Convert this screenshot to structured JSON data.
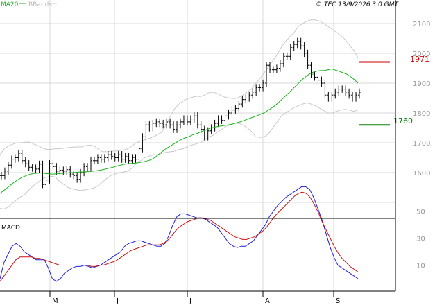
{
  "header": {
    "legend_ma": "MA20",
    "legend_bbands": "BBands",
    "copyright": "© TEC 13/9/2026 3:0 GMT"
  },
  "colors": {
    "ma": "#19b319",
    "bbands": "#c8c8c8",
    "bars": "#000000",
    "resistance": "#cc0000",
    "support": "#108010",
    "macd_line": "#1e1ee0",
    "signal_line": "#cc1010",
    "grid": "#d8d8d8",
    "axis": "#000000",
    "label": "#999999"
  },
  "chart_data": [
    {
      "type": "ohlc",
      "title": "",
      "x_ticks": [
        "M",
        "J",
        "J",
        "A",
        "S"
      ],
      "y_ticks": [
        1600,
        1700,
        1800,
        1900,
        2000,
        2100
      ],
      "ylim": [
        1470,
        2150
      ],
      "grid": true,
      "legend": [
        "MA20",
        "BBands"
      ],
      "price_close": [
        1590,
        1605,
        1625,
        1645,
        1650,
        1665,
        1640,
        1630,
        1618,
        1615,
        1612,
        1628,
        1560,
        1575,
        1630,
        1620,
        1605,
        1608,
        1605,
        1610,
        1595,
        1590,
        1578,
        1600,
        1620,
        1615,
        1640,
        1640,
        1650,
        1645,
        1650,
        1660,
        1655,
        1650,
        1660,
        1645,
        1655,
        1640,
        1650,
        1645,
        1680,
        1720,
        1760,
        1750,
        1765,
        1770,
        1765,
        1760,
        1770,
        1760,
        1745,
        1760,
        1770,
        1780,
        1770,
        1780,
        1790,
        1760,
        1745,
        1720,
        1740,
        1750,
        1765,
        1780,
        1775,
        1790,
        1800,
        1810,
        1815,
        1830,
        1845,
        1850,
        1860,
        1870,
        1885,
        1885,
        1900,
        1960,
        1945,
        1945,
        1950,
        1965,
        1990,
        1990,
        2020,
        2030,
        2040,
        2025,
        2000,
        1960,
        1930,
        1920,
        1910,
        1900,
        1860,
        1850,
        1860,
        1870,
        1880,
        1880,
        1870,
        1860,
        1850,
        1860,
        1870
      ],
      "ma20": [
        1530,
        1540,
        1550,
        1560,
        1570,
        1578,
        1585,
        1590,
        1595,
        1597,
        1598,
        1599,
        1597,
        1596,
        1595,
        1596,
        1597,
        1598,
        1599,
        1600,
        1601,
        1602,
        1602,
        1603,
        1604,
        1605,
        1607,
        1609,
        1612,
        1615,
        1618,
        1622,
        1625,
        1628,
        1630,
        1631,
        1632,
        1634,
        1636,
        1639,
        1643,
        1650,
        1660,
        1670,
        1680,
        1688,
        1695,
        1703,
        1710,
        1716,
        1720,
        1726,
        1730,
        1735,
        1740,
        1745,
        1750,
        1752,
        1755,
        1757,
        1759,
        1761,
        1764,
        1768,
        1771,
        1776,
        1781,
        1785,
        1790,
        1795,
        1800,
        1808,
        1816,
        1825,
        1836,
        1848,
        1860,
        1872,
        1885,
        1897,
        1910,
        1920,
        1930,
        1936,
        1940,
        1942,
        1942,
        1945,
        1948,
        1944,
        1940,
        1935,
        1930,
        1922,
        1912,
        1900
      ],
      "bb_upper": [
        1660,
        1680,
        1690,
        1695,
        1700,
        1700,
        1702,
        1702,
        1695,
        1690,
        1682,
        1678,
        1678,
        1680,
        1680,
        1682,
        1684,
        1685,
        1686,
        1686,
        1690,
        1692,
        1690,
        1680,
        1670,
        1670,
        1672,
        1672,
        1674,
        1676,
        1680,
        1690,
        1700,
        1705,
        1710,
        1715,
        1720,
        1728,
        1736,
        1760,
        1790,
        1815,
        1830,
        1840,
        1848,
        1852,
        1856,
        1855,
        1860,
        1868,
        1870,
        1865,
        1858,
        1852,
        1850,
        1848,
        1852,
        1860,
        1870,
        1880,
        1900,
        1915,
        1935,
        1955,
        1975,
        1995,
        2020,
        2040,
        2055,
        2070,
        2090,
        2100,
        2108,
        2112,
        2112,
        2108,
        2100,
        2090,
        2080,
        2070,
        2060,
        2046,
        2028,
        2010,
        1985
      ],
      "bb_lower": [
        1480,
        1478,
        1485,
        1498,
        1510,
        1520,
        1530,
        1545,
        1558,
        1568,
        1580,
        1585,
        1588,
        1585,
        1570,
        1560,
        1550,
        1545,
        1542,
        1540,
        1542,
        1545,
        1548,
        1556,
        1568,
        1580,
        1590,
        1595,
        1600,
        1602,
        1605,
        1615,
        1630,
        1640,
        1650,
        1655,
        1660,
        1660,
        1665,
        1668,
        1670,
        1672,
        1678,
        1680,
        1688,
        1692,
        1696,
        1700,
        1710,
        1720,
        1725,
        1735,
        1745,
        1755,
        1760,
        1765,
        1765,
        1760,
        1750,
        1738,
        1720,
        1718,
        1720,
        1730,
        1750,
        1770,
        1790,
        1800,
        1810,
        1818,
        1824,
        1830,
        1834,
        1830,
        1824,
        1816,
        1808,
        1800,
        1800,
        1806,
        1810,
        1812,
        1810,
        1805,
        1810
      ]
    },
    {
      "type": "line",
      "title": "MACD",
      "y_ticks": [
        10,
        30,
        50
      ],
      "ylim": [
        -15,
        70
      ],
      "grid": true,
      "series": [
        {
          "name": "MACD",
          "values": [
            0,
            12,
            18,
            24,
            26,
            24,
            20,
            18,
            16,
            14,
            14,
            14,
            8,
            0,
            -2,
            0,
            4,
            6,
            8,
            9,
            9,
            10,
            9,
            8,
            9,
            10,
            12,
            14,
            16,
            18,
            20,
            24,
            26,
            27,
            28,
            28,
            27,
            26,
            25,
            24,
            24,
            26,
            32,
            40,
            46,
            48,
            48,
            47,
            46,
            45,
            45,
            44,
            42,
            40,
            38,
            34,
            30,
            26,
            24,
            23,
            24,
            24,
            26,
            28,
            32,
            36,
            40,
            46,
            50,
            54,
            57,
            60,
            62,
            64,
            66,
            68,
            68,
            66,
            60,
            52,
            44,
            34,
            24,
            16,
            10,
            8,
            6,
            4,
            2,
            0
          ]
        },
        {
          "name": "Signal",
          "values": [
            -2,
            2,
            6,
            10,
            14,
            16,
            16,
            16,
            16,
            15,
            15,
            14,
            13,
            12,
            11,
            10,
            10,
            10,
            10,
            10,
            10,
            10,
            10,
            9,
            9,
            10,
            10,
            11,
            12,
            13,
            15,
            17,
            19,
            21,
            22,
            23,
            24,
            25,
            25,
            25,
            25,
            26,
            28,
            31,
            35,
            38,
            40,
            42,
            43,
            44,
            45,
            45,
            44,
            43,
            41,
            39,
            37,
            35,
            33,
            31,
            30,
            29,
            29,
            30,
            31,
            33,
            35,
            38,
            42,
            46,
            49,
            52,
            55,
            58,
            61,
            63,
            64,
            63,
            60,
            55,
            49,
            42,
            36,
            30,
            24,
            19,
            15,
            12,
            9,
            7,
            5
          ]
        }
      ]
    }
  ],
  "levels": {
    "resistance": {
      "value": 1971,
      "label": "1971"
    },
    "support": {
      "value": 1760,
      "label": "1760"
    }
  },
  "macd_panel": {
    "label": "MACD",
    "tick_labels": [
      "50",
      "30",
      "10"
    ]
  },
  "price_axis": {
    "tick_labels": [
      "2100",
      "2000",
      "1900",
      "1800",
      "1700",
      "1600"
    ]
  },
  "time_axis": {
    "tick_labels": [
      "M",
      "J",
      "J",
      "A",
      "S"
    ]
  }
}
